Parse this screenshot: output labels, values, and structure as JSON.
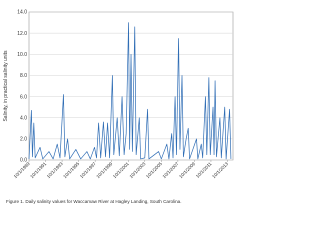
{
  "chart_data": {
    "type": "line",
    "y_label": "Salinity, in practical salinity units",
    "caption": "Figure 1. Daily salinity values for Waccamaw River at Hagley Landing, South Carolina.",
    "color": "#2f6db5",
    "grid": true,
    "ylim": [
      0,
      14
    ],
    "yticks": [
      {
        "value": 0,
        "label": "0.0"
      },
      {
        "value": 2,
        "label": "2.0"
      },
      {
        "value": 4,
        "label": "4.0"
      },
      {
        "value": 6,
        "label": "6.0"
      },
      {
        "value": 8,
        "label": "8.0"
      },
      {
        "value": 10,
        "label": "10.0"
      },
      {
        "value": 12,
        "label": "12.0"
      },
      {
        "value": 14,
        "label": "14.0"
      }
    ],
    "xlim": [
      "1989-10-01",
      "2014-06-01"
    ],
    "xticks": [
      {
        "value": "1989-10-01",
        "label": "10/1/1989"
      },
      {
        "value": "1991-10-01",
        "label": "10/1/1991"
      },
      {
        "value": "1993-10-01",
        "label": "10/1/1993"
      },
      {
        "value": "1995-10-01",
        "label": "10/1/1995"
      },
      {
        "value": "1997-10-01",
        "label": "10/1/1997"
      },
      {
        "value": "1999-10-01",
        "label": "10/1/1999"
      },
      {
        "value": "2001-10-01",
        "label": "10/1/2001"
      },
      {
        "value": "2003-10-01",
        "label": "10/1/2003"
      },
      {
        "value": "2005-10-01",
        "label": "10/1/2005"
      },
      {
        "value": "2007-10-01",
        "label": "10/1/2007"
      },
      {
        "value": "2009-10-01",
        "label": "10/1/2009"
      },
      {
        "value": "2011-10-01",
        "label": "10/1/2011"
      },
      {
        "value": "2013-10-01",
        "label": "10/1/2013"
      }
    ],
    "series": [
      {
        "x": [
          "1989-10-01",
          "1990-01-15",
          "1990-03-01",
          "1990-05-01",
          "1990-07-01",
          "1991-02-01",
          "1991-06-01",
          "1992-03-01",
          "1992-09-01",
          "1993-03-01",
          "1993-07-01",
          "1993-12-01",
          "1994-02-01",
          "1994-06-01",
          "1994-09-01",
          "1995-06-01",
          "1996-01-01",
          "1996-10-01",
          "1997-03-01",
          "1997-09-01",
          "1997-12-01",
          "1998-03-01",
          "1998-06-01",
          "1998-10-01",
          "1999-01-01",
          "1999-04-01",
          "1999-07-01",
          "1999-11-01",
          "2000-01-01",
          "2000-06-01",
          "2000-09-01",
          "2001-01-01",
          "2001-04-01",
          "2001-07-01",
          "2001-10-15",
          "2001-12-01",
          "2002-02-01",
          "2002-04-01",
          "2002-07-15",
          "2002-09-15",
          "2003-02-01",
          "2003-04-01",
          "2003-10-01",
          "2004-02-01",
          "2004-04-01",
          "2005-06-01",
          "2005-10-01",
          "2006-06-01",
          "2006-09-01",
          "2007-01-01",
          "2007-03-01",
          "2007-06-01",
          "2007-08-01",
          "2007-11-01",
          "2008-01-01",
          "2008-04-01",
          "2008-06-01",
          "2008-10-01",
          "2009-01-01",
          "2009-03-01",
          "2010-01-01",
          "2010-03-01",
          "2010-08-01",
          "2010-10-01",
          "2011-02-01",
          "2011-04-01",
          "2011-07-01",
          "2011-09-01",
          "2012-01-01",
          "2012-02-15",
          "2012-04-01",
          "2012-06-01",
          "2012-11-01",
          "2013-01-01",
          "2013-06-01",
          "2013-08-01",
          "2014-01-01",
          "2014-03-01"
        ],
        "values": [
          0.1,
          4.7,
          0.3,
          3.5,
          0.2,
          1.2,
          0.1,
          0.8,
          0.1,
          1.5,
          0.2,
          6.2,
          0.3,
          2.0,
          0.1,
          1.0,
          0.1,
          0.8,
          0.1,
          1.2,
          0.2,
          3.5,
          0.2,
          3.6,
          0.3,
          3.5,
          0.2,
          8.0,
          0.5,
          4.0,
          0.4,
          6.0,
          0.5,
          2.5,
          13.0,
          1.0,
          10.0,
          0.8,
          12.6,
          0.5,
          4.0,
          0.1,
          0.2,
          4.8,
          0.1,
          0.8,
          0.1,
          1.5,
          0.1,
          2.5,
          0.2,
          6.0,
          0.5,
          11.5,
          1.0,
          8.0,
          0.3,
          2.0,
          3.0,
          0.1,
          2.0,
          0.1,
          1.5,
          0.2,
          6.0,
          0.5,
          7.8,
          0.5,
          5.0,
          0.5,
          7.5,
          0.3,
          4.0,
          0.2,
          5.0,
          0.1,
          4.8,
          0.1
        ]
      }
    ]
  }
}
